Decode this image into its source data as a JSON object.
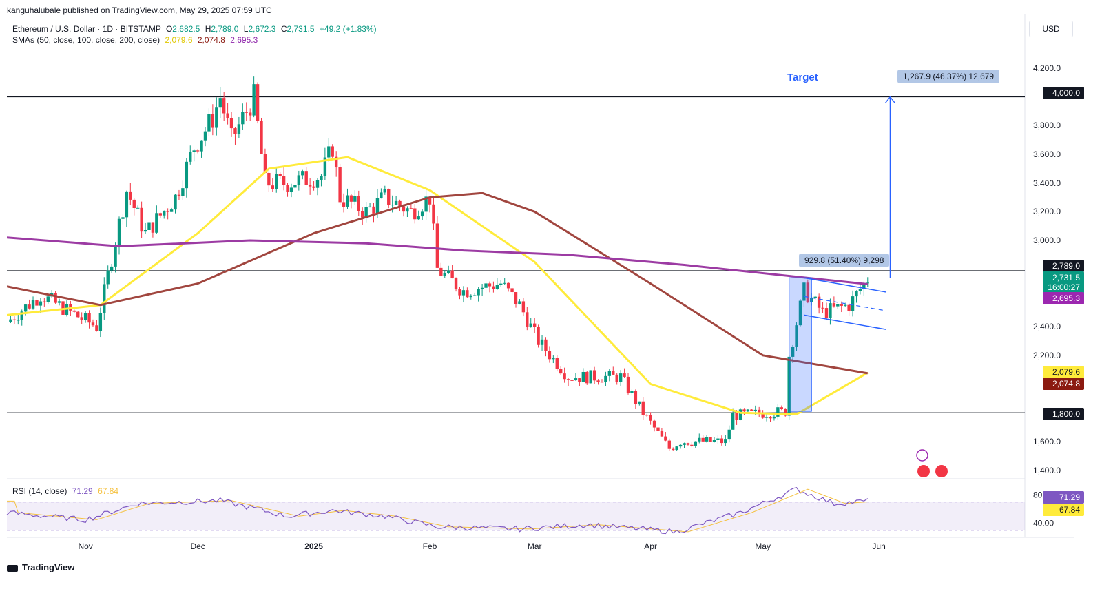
{
  "publisher": "kanguhalubale published on TradingView.com, May 29, 2025 07:59 UTC",
  "header": {
    "symbol": "Ethereum / U.S. Dollar · 1D · BITSTAMP",
    "open_label": "O",
    "open": "2,682.5",
    "high_label": "H",
    "high": "2,789.0",
    "low_label": "L",
    "low": "2,672.3",
    "close_label": "C",
    "close": "2,731.5",
    "change": "+49.2 (+1.83%)",
    "sma_label": "SMAs (50, close, 100, close, 200, close)",
    "sma50": "2,079.6",
    "sma100": "2,074.8",
    "sma200": "2,695.3",
    "rsi_label": "RSI (14, close)",
    "rsi_value": "71.29",
    "rsi_ma": "67.84"
  },
  "currency": "USD",
  "annotations": {
    "target": "Target",
    "target_measure": "1,267.9 (46.37%) 12,679",
    "flagpole_measure": "929.8 (51.40%) 9,298"
  },
  "price_tags": {
    "res_2789": "2,789.0",
    "last_price": "2,731.5",
    "countdown": "16:00:27",
    "sma200": "2,695.3",
    "sma50": "2,079.6",
    "sma100": "2,074.8",
    "level_4000": "4,000.0",
    "level_1800": "1,800.0",
    "rsi": "71.29",
    "rsi_ma": "67.84"
  },
  "colors": {
    "up": "#089981",
    "down": "#f23645",
    "sma50": "#ffeb3b",
    "sma100": "#a1463f",
    "sma200": "#9c3ba3",
    "accent": "#2962ff",
    "rsi": "#7e57c2"
  },
  "brand": "TradingView",
  "chart_data": {
    "type": "candlestick",
    "timeframe": "1D",
    "y_range": [
      1350,
      4300
    ],
    "y_ticks": [
      "4,200.0",
      "3,800.0",
      "3,600.0",
      "3,400.0",
      "3,200.0",
      "3,000.0",
      "2,400.0",
      "2,200.0",
      "1,600.0",
      "1,400.0"
    ],
    "y_tick_values": [
      4200,
      3800,
      3600,
      3400,
      3200,
      3000,
      2400,
      2200,
      1600,
      1400
    ],
    "x_ticks": [
      "Nov",
      "Dec",
      "2025",
      "Feb",
      "Mar",
      "Apr",
      "May",
      "Jun"
    ],
    "x_tick_dates": [
      "2024-11-01",
      "2024-12-01",
      "2025-01-01",
      "2025-02-01",
      "2025-03-01",
      "2025-04-01",
      "2025-05-01",
      "2025-06-01"
    ],
    "x_range": [
      "2024-10-11",
      "2025-07-10"
    ],
    "horizontal_levels": [
      4000,
      2789,
      1800
    ],
    "candles_keypoints": [
      [
        "2024-10-11",
        2430
      ],
      [
        "2024-10-20",
        2620
      ],
      [
        "2024-10-28",
        2500
      ],
      [
        "2024-11-04",
        2400
      ],
      [
        "2024-11-09",
        3000
      ],
      [
        "2024-11-12",
        3350
      ],
      [
        "2024-11-17",
        3050
      ],
      [
        "2024-11-25",
        3300
      ],
      [
        "2024-11-30",
        3650
      ],
      [
        "2024-12-05",
        3850
      ],
      [
        "2024-12-07",
        4000
      ],
      [
        "2024-12-10",
        3700
      ],
      [
        "2024-12-16",
        4000
      ],
      [
        "2024-12-19",
        3400
      ],
      [
        "2024-12-25",
        3400
      ],
      [
        "2025-01-03",
        3450
      ],
      [
        "2025-01-06",
        3650
      ],
      [
        "2025-01-08",
        3300
      ],
      [
        "2025-01-15",
        3200
      ],
      [
        "2025-01-20",
        3300
      ],
      [
        "2025-01-27",
        3200
      ],
      [
        "2025-02-01",
        3300
      ],
      [
        "2025-02-03",
        2800
      ],
      [
        "2025-02-10",
        2650
      ],
      [
        "2025-02-20",
        2700
      ],
      [
        "2025-02-25",
        2550
      ],
      [
        "2025-03-02",
        2300
      ],
      [
        "2025-03-10",
        2050
      ],
      [
        "2025-03-24",
        2050
      ],
      [
        "2025-03-30",
        1800
      ],
      [
        "2025-04-06",
        1550
      ],
      [
        "2025-04-09",
        1600
      ],
      [
        "2025-04-21",
        1600
      ],
      [
        "2025-04-23",
        1780
      ],
      [
        "2025-05-07",
        1810
      ],
      [
        "2025-05-08",
        2200
      ],
      [
        "2025-05-12",
        2650
      ],
      [
        "2025-05-17",
        2500
      ],
      [
        "2025-05-24",
        2550
      ],
      [
        "2025-05-27",
        2660
      ],
      [
        "2025-05-29",
        2731.5
      ]
    ],
    "series": [
      {
        "name": "SMA 50",
        "points": [
          [
            "2024-10-11",
            2480
          ],
          [
            "2024-11-05",
            2550
          ],
          [
            "2024-12-01",
            3050
          ],
          [
            "2024-12-20",
            3500
          ],
          [
            "2025-01-10",
            3580
          ],
          [
            "2025-02-01",
            3350
          ],
          [
            "2025-03-01",
            2850
          ],
          [
            "2025-04-01",
            2000
          ],
          [
            "2025-04-25",
            1800
          ],
          [
            "2025-05-10",
            1790
          ],
          [
            "2025-05-29",
            2079.6
          ]
        ]
      },
      {
        "name": "SMA 100",
        "points": [
          [
            "2024-10-11",
            2680
          ],
          [
            "2024-11-05",
            2550
          ],
          [
            "2024-12-01",
            2700
          ],
          [
            "2025-01-01",
            3050
          ],
          [
            "2025-02-01",
            3300
          ],
          [
            "2025-02-15",
            3330
          ],
          [
            "2025-03-01",
            3200
          ],
          [
            "2025-04-01",
            2700
          ],
          [
            "2025-05-01",
            2200
          ],
          [
            "2025-05-29",
            2074.8
          ]
        ]
      },
      {
        "name": "SMA 200",
        "points": [
          [
            "2024-10-11",
            3020
          ],
          [
            "2024-11-10",
            2960
          ],
          [
            "2024-12-15",
            3000
          ],
          [
            "2025-01-15",
            2980
          ],
          [
            "2025-02-10",
            2930
          ],
          [
            "2025-03-10",
            2900
          ],
          [
            "2025-04-10",
            2830
          ],
          [
            "2025-05-29",
            2695.3
          ]
        ]
      }
    ],
    "rsi": {
      "y_ticks": [
        "80.00",
        "40.00"
      ],
      "y_tick_values": [
        80,
        40
      ],
      "y_range": [
        25,
        95
      ],
      "band": [
        30,
        70
      ],
      "points": [
        [
          "2024-10-11",
          55
        ],
        [
          "2024-11-01",
          45
        ],
        [
          "2024-11-15",
          68
        ],
        [
          "2024-12-07",
          72
        ],
        [
          "2024-12-25",
          50
        ],
        [
          "2025-01-06",
          58
        ],
        [
          "2025-01-20",
          50
        ],
        [
          "2025-02-03",
          35
        ],
        [
          "2025-02-25",
          32
        ],
        [
          "2025-03-15",
          38
        ],
        [
          "2025-04-08",
          28
        ],
        [
          "2025-04-25",
          55
        ],
        [
          "2025-05-10",
          88
        ],
        [
          "2025-05-20",
          68
        ],
        [
          "2025-05-29",
          71.29
        ]
      ]
    }
  }
}
